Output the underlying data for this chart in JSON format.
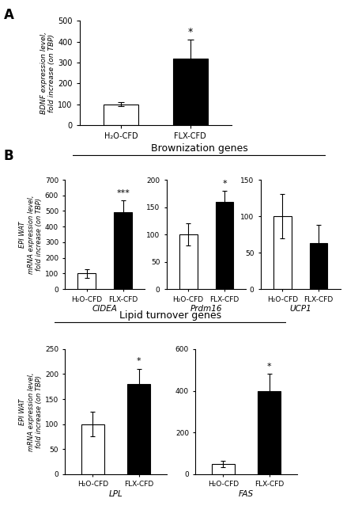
{
  "panel_A": {
    "categories": [
      "H₂O-CFD",
      "FLX-CFD"
    ],
    "values": [
      100,
      320
    ],
    "errors": [
      8,
      90
    ],
    "colors": [
      "white",
      "black"
    ],
    "ylim": [
      0,
      500
    ],
    "yticks": [
      0,
      100,
      200,
      300,
      400,
      500
    ],
    "ylabel": "BDNF expression level,\nfold increase (on TBP)",
    "significance": [
      "",
      "*"
    ]
  },
  "panel_B_brownization": {
    "title": "Brownization genes",
    "genes": [
      {
        "name": "CIDEA",
        "categories": [
          "H₂O-CFD",
          "FLX-CFD"
        ],
        "values": [
          100,
          490
        ],
        "errors": [
          30,
          80
        ],
        "colors": [
          "white",
          "black"
        ],
        "ylim": [
          0,
          700
        ],
        "yticks": [
          0,
          100,
          200,
          300,
          400,
          500,
          600,
          700
        ],
        "significance": [
          "",
          "***"
        ]
      },
      {
        "name": "Prdm16",
        "categories": [
          "H₂O-CFD",
          "FLX-CFD"
        ],
        "values": [
          100,
          160
        ],
        "errors": [
          20,
          20
        ],
        "colors": [
          "white",
          "black"
        ],
        "ylim": [
          0,
          200
        ],
        "yticks": [
          0,
          50,
          100,
          150,
          200
        ],
        "significance": [
          "",
          "*"
        ]
      },
      {
        "name": "UCP1",
        "categories": [
          "H₂O-CFD",
          "FLX-CFD"
        ],
        "values": [
          100,
          63
        ],
        "errors": [
          30,
          25
        ],
        "colors": [
          "white",
          "black"
        ],
        "ylim": [
          0,
          150
        ],
        "yticks": [
          0,
          50,
          100,
          150
        ],
        "significance": [
          "",
          ""
        ]
      }
    ]
  },
  "panel_B_lipid": {
    "title": "Lipid turnover genes",
    "genes": [
      {
        "name": "LPL",
        "categories": [
          "H₂O-CFD",
          "FLX-CFD"
        ],
        "values": [
          100,
          180
        ],
        "errors": [
          25,
          30
        ],
        "colors": [
          "white",
          "black"
        ],
        "ylim": [
          0,
          250
        ],
        "yticks": [
          0,
          50,
          100,
          150,
          200,
          250
        ],
        "significance": [
          "",
          "*"
        ]
      },
      {
        "name": "FAS",
        "categories": [
          "H₂O-CFD",
          "FLX-CFD"
        ],
        "values": [
          50,
          400
        ],
        "errors": [
          15,
          80
        ],
        "colors": [
          "white",
          "black"
        ],
        "ylim": [
          0,
          600
        ],
        "yticks": [
          0,
          200,
          400,
          600
        ],
        "significance": [
          "",
          "*"
        ]
      }
    ]
  },
  "ylabel_B": "EPI WAT\nmRNA expression level,\nfold increase (on TBP)",
  "bar_width": 0.5,
  "figure_label_A": "A",
  "figure_label_B": "B"
}
